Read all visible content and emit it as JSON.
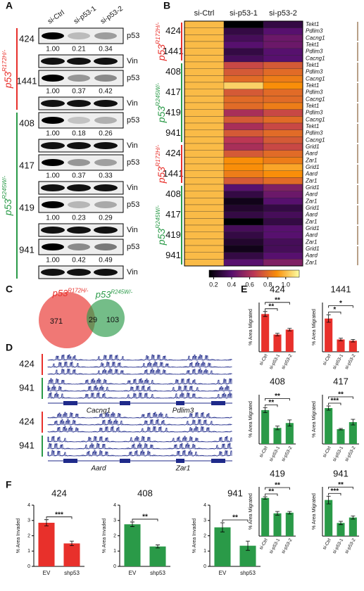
{
  "panel_letters": [
    "A",
    "B",
    "C",
    "D",
    "E",
    "F"
  ],
  "blots": {
    "columns": [
      "si-Ctrl",
      "si-p53-1",
      "si-p53-2"
    ],
    "protein_labels": [
      "p53",
      "Vin"
    ],
    "genotypes": [
      {
        "name": "p53",
        "sup": "R172H/-",
        "color": "#e8302b",
        "cells": [
          {
            "label": "424",
            "quant": [
              "1.00",
              "0.21",
              "0.34"
            ]
          },
          {
            "label": "1441",
            "quant": [
              "1.00",
              "0.37",
              "0.42"
            ]
          }
        ]
      },
      {
        "name": "p53",
        "sup": "R245W/-",
        "color": "#2a9a48",
        "cells": [
          {
            "label": "408",
            "quant": [
              "1.00",
              "0.18",
              "0.26"
            ]
          },
          {
            "label": "417",
            "quant": [
              "1.00",
              "0.37",
              "0.33"
            ]
          },
          {
            "label": "419",
            "quant": [
              "1.00",
              "0.23",
              "0.29"
            ]
          },
          {
            "label": "941",
            "quant": [
              "1.00",
              "0.42",
              "0.49"
            ]
          }
        ]
      }
    ]
  },
  "heatmap": {
    "columns": [
      "si-Ctrl",
      "si-p53-1",
      "si-p53-2"
    ],
    "genotype_blocks": [
      {
        "name": "p53",
        "sup": "R172H/-",
        "color": "#e8302b",
        "cells": [
          {
            "label": "424",
            "genes": [
              "Tekt1",
              "Pdlim3",
              "Cacng1"
            ],
            "values": [
              [
                1,
                0.15,
                0.3
              ],
              [
                1,
                0.3,
                0.4
              ],
              [
                1,
                0.35,
                0.45
              ]
            ]
          },
          {
            "label": "1441",
            "genes": [
              "Tekt1",
              "Pdlim3",
              "Cacng1"
            ],
            "values": [
              [
                1,
                0.4,
                0.45
              ],
              [
                1,
                0.3,
                0.4
              ],
              [
                1,
                0.35,
                0.4
              ]
            ]
          }
        ]
      },
      {
        "name": "p53",
        "sup": "R245W/-",
        "color": "#2a9a48",
        "cells": [
          {
            "label": "408",
            "genes": [
              "Tekt1",
              "Pdlim3",
              "Cacng1"
            ],
            "values": [
              [
                1,
                0.7,
                0.75
              ],
              [
                1,
                0.75,
                0.8
              ],
              [
                1,
                0.8,
                0.85
              ]
            ]
          },
          {
            "label": "417",
            "genes": [
              "Tekt1",
              "Pdlim3",
              "Cacng1"
            ],
            "values": [
              [
                1,
                1.05,
                0.9
              ],
              [
                1,
                0.75,
                0.8
              ],
              [
                1,
                0.8,
                0.8
              ]
            ]
          },
          {
            "label": "419",
            "genes": [
              "Tekt1",
              "Pdlim3",
              "Cacng1"
            ],
            "values": [
              [
                1,
                0.8,
                0.85
              ],
              [
                1,
                0.6,
                0.7
              ],
              [
                1,
                0.75,
                0.8
              ]
            ]
          },
          {
            "label": "941",
            "genes": [
              "Tekt1",
              "Pdlim3",
              "Cacng1"
            ],
            "values": [
              [
                1,
                0.6,
                0.7
              ],
              [
                1,
                0.75,
                0.8
              ],
              [
                1,
                0.65,
                0.75
              ]
            ]
          }
        ]
      },
      {
        "name": "p53",
        "sup": "R172H/-",
        "color": "#e8302b",
        "cells": [
          {
            "label": "424",
            "genes": [
              "Grid1",
              "Aard",
              "Zar1"
            ],
            "values": [
              [
                1,
                0.6,
                0.7
              ],
              [
                1,
                0.75,
                0.8
              ],
              [
                1,
                0.9,
                0.85
              ]
            ]
          },
          {
            "label": "1441",
            "genes": [
              "Grid1",
              "Aard",
              "Zar1"
            ],
            "values": [
              [
                1,
                0.9,
                0.95
              ],
              [
                1,
                0.85,
                0.9
              ],
              [
                1,
                0.75,
                0.8
              ]
            ]
          }
        ]
      },
      {
        "name": "p53",
        "sup": "R245W/-",
        "color": "#2a9a48",
        "cells": [
          {
            "label": "408",
            "genes": [
              "Grid1",
              "Aard",
              "Zar1"
            ],
            "values": [
              [
                1,
                0.4,
                0.5
              ],
              [
                1,
                0.3,
                0.45
              ],
              [
                1,
                0.2,
                0.4
              ]
            ]
          },
          {
            "label": "417",
            "genes": [
              "Grid1",
              "Aard",
              "Zar1"
            ],
            "values": [
              [
                1,
                0.25,
                0.3
              ],
              [
                1,
                0.3,
                0.35
              ],
              [
                1,
                0.1,
                0.3
              ]
            ]
          },
          {
            "label": "419",
            "genes": [
              "Grid1",
              "Aard",
              "Zar1"
            ],
            "values": [
              [
                1,
                0.35,
                0.4
              ],
              [
                1,
                0.3,
                0.4
              ],
              [
                1,
                0.25,
                0.35
              ]
            ]
          },
          {
            "label": "941",
            "genes": [
              "Grid1",
              "Aard",
              "Zar1"
            ],
            "values": [
              [
                1,
                0.2,
                0.35
              ],
              [
                1,
                0.3,
                0.4
              ],
              [
                1,
                0.4,
                0.5
              ]
            ]
          }
        ]
      }
    ],
    "colorbar": {
      "lim": [
        0.15,
        1.15
      ],
      "ticks": [
        0.2,
        0.4,
        0.6,
        0.8,
        {
          "value": 1,
          "label": "1.0"
        }
      ]
    }
  },
  "venn": {
    "sets": [
      {
        "name": "p53",
        "sup": "R172H/-",
        "color": "#e8302b",
        "only": 371
      },
      {
        "name": "p53",
        "sup": "R245W/-",
        "color": "#2a9a48",
        "only": 103
      }
    ],
    "overlap": 29
  },
  "tracks": {
    "loci": [
      {
        "cells": [
          {
            "label": "424",
            "color": "#e8302b"
          },
          {
            "label": "941",
            "color": "#2a9a48"
          }
        ],
        "genes": [
          "Cacng1",
          "Pdlim3"
        ]
      },
      {
        "cells": [
          {
            "label": "424",
            "color": "#e8302b"
          },
          {
            "label": "941",
            "color": "#2a9a48"
          }
        ],
        "genes": [
          "Aard",
          "Zar1"
        ]
      }
    ]
  },
  "chart_data": [
    {
      "type": "bar",
      "title": "424",
      "color": "#e8302b",
      "ylabel": "% Area Migrated",
      "categories": [
        "si-Ctrl",
        "si-p53-1",
        "si-p53-2"
      ],
      "values": [
        4.6,
        2.1,
        2.7
      ],
      "errors": [
        0.3,
        0.15,
        0.15
      ],
      "ylim": [
        0,
        6
      ],
      "annotations": [
        "**",
        "**"
      ]
    },
    {
      "type": "bar",
      "title": "1441",
      "color": "#e8302b",
      "ylabel": "% Area Migrated",
      "categories": [
        "si-Ctrl",
        "si-p53-1",
        "si-p53-2"
      ],
      "values": [
        2.7,
        1.0,
        0.9
      ],
      "errors": [
        0.3,
        0.1,
        0.1
      ],
      "ylim": [
        0,
        4
      ],
      "annotations": [
        "*",
        "*"
      ]
    },
    {
      "type": "bar",
      "title": "408",
      "color": "#2a9a48",
      "ylabel": "% Area Migrated",
      "categories": [
        "si-Ctrl",
        "si-p53-1",
        "si-p53-2"
      ],
      "values": [
        5.5,
        2.6,
        3.4
      ],
      "errors": [
        0.4,
        0.3,
        0.5
      ],
      "ylim": [
        0,
        8
      ],
      "annotations": [
        "**",
        "**"
      ]
    },
    {
      "type": "bar",
      "title": "417",
      "color": "#2a9a48",
      "ylabel": "% Area Migrated",
      "categories": [
        "si-Ctrl",
        "si-p53-1",
        "si-p53-2"
      ],
      "values": [
        5.1,
        2.1,
        3.1
      ],
      "errors": [
        0.3,
        0.1,
        0.4
      ],
      "ylim": [
        0,
        7
      ],
      "annotations": [
        "***",
        "**"
      ]
    },
    {
      "type": "bar",
      "title": "419",
      "color": "#2a9a48",
      "ylabel": "% Area Migrated",
      "categories": [
        "si-Ctrl",
        "si-p53-1",
        "si-p53-2"
      ],
      "values": [
        6.2,
        3.7,
        3.8
      ],
      "errors": [
        0.2,
        0.3,
        0.2
      ],
      "ylim": [
        0,
        8
      ],
      "annotations": [
        "**",
        "**"
      ]
    },
    {
      "type": "bar",
      "title": "941",
      "color": "#2a9a48",
      "ylabel": "% Area Migrated",
      "categories": [
        "si-Ctrl",
        "si-p53-1",
        "si-p53-2"
      ],
      "values": [
        6.6,
        2.4,
        3.4
      ],
      "errors": [
        0.7,
        0.3,
        0.3
      ],
      "ylim": [
        0,
        9
      ],
      "annotations": [
        "***",
        "**"
      ]
    },
    {
      "type": "bar",
      "title": "424",
      "color": "#e8302b",
      "ylabel": "% Area Invaded",
      "categories": [
        "EV",
        "shp53"
      ],
      "values": [
        2.85,
        1.5
      ],
      "errors": [
        0.2,
        0.15
      ],
      "ylim": [
        0,
        4
      ],
      "yticks": [
        0,
        1,
        2,
        3,
        4
      ],
      "annotations": [
        "***"
      ]
    },
    {
      "type": "bar",
      "title": "408",
      "color": "#2a9a48",
      "ylabel": "% Area Invaded",
      "categories": [
        "EV",
        "shp53"
      ],
      "values": [
        2.75,
        1.3
      ],
      "errors": [
        0.15,
        0.1
      ],
      "ylim": [
        0,
        4
      ],
      "yticks": [
        0,
        1,
        2,
        3,
        4
      ],
      "annotations": [
        "**"
      ]
    },
    {
      "type": "bar",
      "title": "941",
      "color": "#2a9a48",
      "ylabel": "% Area Invaded",
      "categories": [
        "EV",
        "shp53"
      ],
      "values": [
        2.55,
        1.35
      ],
      "errors": [
        0.3,
        0.3
      ],
      "ylim": [
        0,
        4
      ],
      "yticks": [
        0,
        1,
        2,
        3,
        4
      ],
      "annotations": [
        "**"
      ]
    }
  ]
}
